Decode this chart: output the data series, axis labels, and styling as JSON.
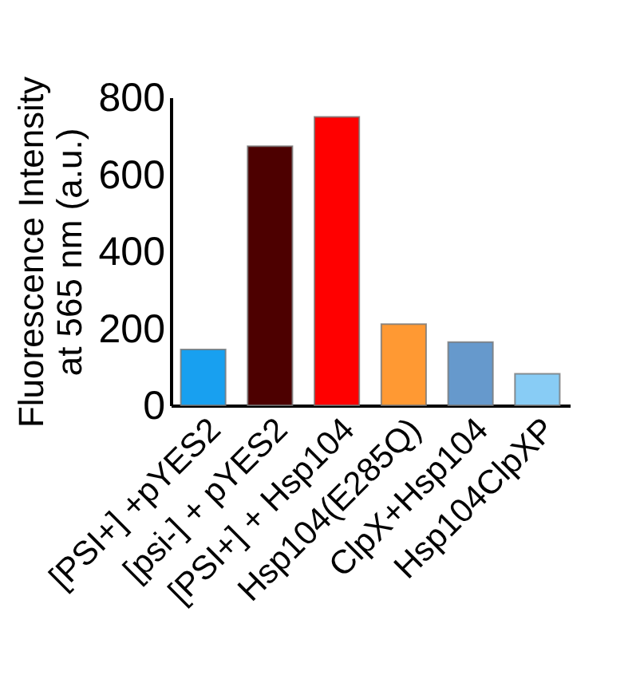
{
  "chart_data": {
    "type": "bar",
    "ylabel": "Fluorescence Intensity\nat 565 nm (a.u.)",
    "categories": [
      "[PSI+] +pYES2",
      "[psi-] + pYES2",
      "[PSI+] + Hsp104",
      "Hsp104(E285Q)",
      "ClpX+Hsp104",
      "Hsp104ClpXP"
    ],
    "values": [
      145,
      673,
      749,
      211,
      164,
      82
    ],
    "colors": [
      "#18a0f0",
      "#4d0000",
      "#ff0000",
      "#ff9933",
      "#6699cc",
      "#88ccf5"
    ],
    "ylim": [
      0,
      800
    ],
    "yticks": [
      0,
      200,
      400,
      600,
      800
    ],
    "grid": false
  }
}
